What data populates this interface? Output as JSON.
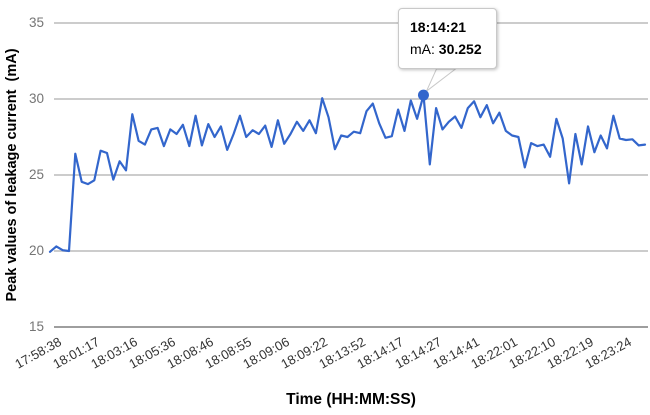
{
  "chart": {
    "y_axis": {
      "title": "Peak values of leakage current  (mA)",
      "ticks": [
        35,
        30,
        25,
        20,
        15
      ]
    },
    "x_axis": {
      "title": "Time (HH:MM:SS)"
    },
    "tooltip": {
      "time": "18:14:21",
      "series_label": "mA:",
      "value": "30.252"
    },
    "colors": {
      "line": "#3366cc",
      "point": "#3366cc",
      "grid": "#cccccc",
      "baseline": "#9e9e9e",
      "y_tick_text": "#757575",
      "x_tick_text": "#333333"
    }
  },
  "chart_data": {
    "type": "line",
    "title": "",
    "xlabel": "Time (HH:MM:SS)",
    "ylabel": "Peak values of leakage current  (mA)",
    "ylim": [
      15,
      35
    ],
    "y_ticks": [
      15,
      20,
      25,
      30,
      35
    ],
    "grid": true,
    "legend": "none",
    "x_tick_labels": [
      "17:58:38",
      "18:01:17",
      "18:03:16",
      "18:05:36",
      "18:08:46",
      "18:08:55",
      "18:09:06",
      "18:09:22",
      "18:13:52",
      "18:14:17",
      "18:14:27",
      "18:14:41",
      "18:22:01",
      "18:22:10",
      "18:22:19",
      "18:23:24"
    ],
    "label_every_n_points": 6,
    "series": [
      {
        "name": "mA",
        "values": [
          19.95,
          20.3,
          20.05,
          20.0,
          26.4,
          24.55,
          24.4,
          24.65,
          26.6,
          26.45,
          24.7,
          25.9,
          25.3,
          29.0,
          27.25,
          27.0,
          28.0,
          28.1,
          26.9,
          28.0,
          27.7,
          28.3,
          26.9,
          28.9,
          26.95,
          28.35,
          27.5,
          28.2,
          26.65,
          27.7,
          28.9,
          27.5,
          27.95,
          27.7,
          28.25,
          26.85,
          28.6,
          27.05,
          27.7,
          28.5,
          27.9,
          28.6,
          27.75,
          30.05,
          28.8,
          26.7,
          27.6,
          27.5,
          27.85,
          27.75,
          29.2,
          29.7,
          28.4,
          27.45,
          27.55,
          29.3,
          27.9,
          29.9,
          28.7,
          30.252,
          25.7,
          29.4,
          28.0,
          28.5,
          28.85,
          28.1,
          29.4,
          29.85,
          28.8,
          29.6,
          28.4,
          29.1,
          27.9,
          27.6,
          27.5,
          25.5,
          27.1,
          26.9,
          27.0,
          26.2,
          28.7,
          27.4,
          24.45,
          27.7,
          25.7,
          28.2,
          26.5,
          27.6,
          26.75,
          28.9,
          27.4,
          27.3,
          27.35,
          26.95,
          27.0
        ]
      }
    ],
    "highlighted_point": {
      "index": 59,
      "time": "18:14:21",
      "series": "mA",
      "value": 30.252
    }
  }
}
